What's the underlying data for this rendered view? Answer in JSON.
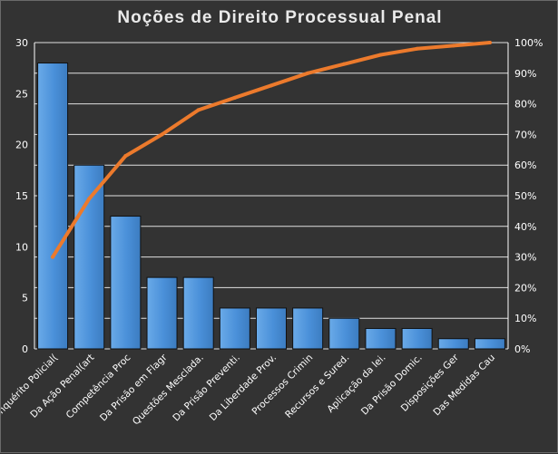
{
  "chart_data": {
    "type": "bar",
    "title": "Noções de Direito Processual Penal",
    "categories": [
      "Inquérito Policial(",
      "Da Ação Penal(art",
      "Competência Proc",
      "Da Prisão em Flagr",
      "Questões Mesclada.",
      "Da Prisão Preventi.",
      "Da Liberdade Prov.",
      "Processos Crimin",
      "Recursos e Sured.",
      "Aplicação da lei.",
      "Da Prisão Domic.",
      "Disposições Ger",
      "Das Medidas Cau"
    ],
    "series": [
      {
        "type": "bar",
        "axis": "left",
        "values": [
          28,
          18,
          13,
          7,
          7,
          4,
          4,
          4,
          3,
          2,
          2,
          1,
          1
        ]
      },
      {
        "type": "line",
        "axis": "right",
        "values": [
          30,
          49,
          63,
          70,
          78,
          82,
          86,
          90,
          93,
          96,
          98,
          99,
          100
        ]
      }
    ],
    "ylim_left": [
      0,
      30
    ],
    "yticks_left": [
      0,
      5,
      10,
      15,
      20,
      25,
      30
    ],
    "ylim_right": [
      0,
      100
    ],
    "yticks_right": [
      "0%",
      "10%",
      "20%",
      "30%",
      "40%",
      "50%",
      "60%",
      "70%",
      "80%",
      "90%",
      "100%"
    ],
    "grid": true,
    "legend": "none",
    "colors": {
      "bar": "#4a90d9",
      "line": "#ec7a2c",
      "grid": "#ffffff",
      "background": "#333333"
    }
  }
}
